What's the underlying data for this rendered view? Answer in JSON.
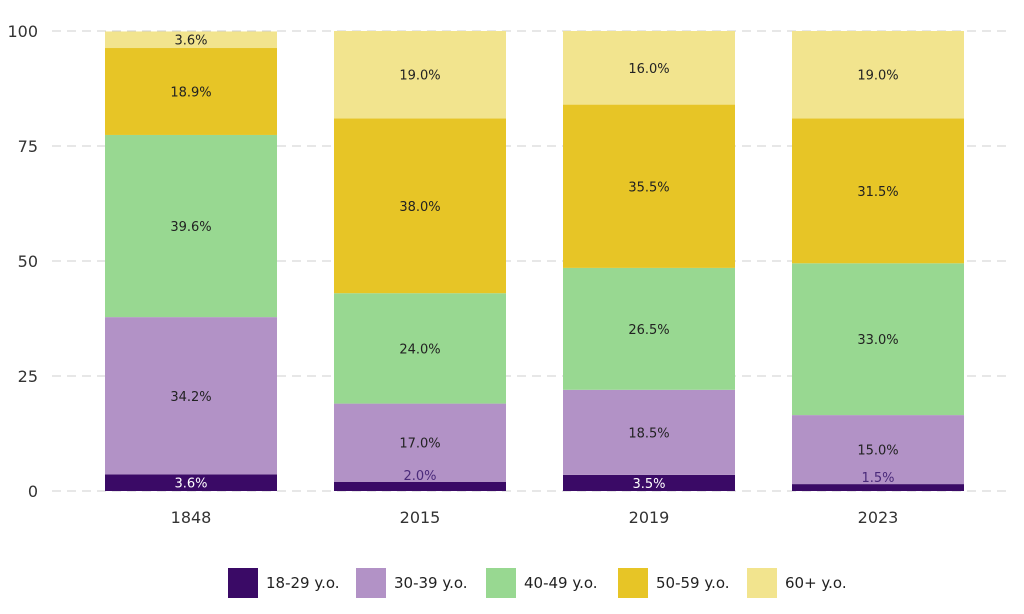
{
  "chart_data": {
    "type": "bar",
    "stacked": true,
    "categories": [
      "1848",
      "2015",
      "2019",
      "2023"
    ],
    "series": [
      {
        "name": "18-29 y.o.",
        "color": "#3a0a66",
        "values": [
          3.6,
          2.0,
          3.5,
          1.5
        ],
        "labels": [
          "3.6%",
          "2.0%",
          "3.5%",
          "1.5%"
        ],
        "label_color": "#ffffff"
      },
      {
        "name": "30-39 y.o.",
        "color": "#b292c6",
        "values": [
          34.2,
          17.0,
          18.5,
          15.0
        ],
        "labels": [
          "34.2%",
          "17.0%",
          "18.5%",
          "15.0%"
        ],
        "label_color": "#222222"
      },
      {
        "name": "40-49 y.o.",
        "color": "#98d891",
        "values": [
          39.6,
          24.0,
          26.5,
          33.0
        ],
        "labels": [
          "39.6%",
          "24.0%",
          "26.5%",
          "33.0%"
        ],
        "label_color": "#222222"
      },
      {
        "name": "50-59 y.o.",
        "color": "#e7c526",
        "values": [
          18.9,
          38.0,
          35.5,
          31.5
        ],
        "labels": [
          "18.9%",
          "38.0%",
          "35.5%",
          "31.5%"
        ],
        "label_color": "#222222"
      },
      {
        "name": "60+ y.o.",
        "color": "#f2e48e",
        "values": [
          3.6,
          19.0,
          16.0,
          19.0
        ],
        "labels": [
          "3.6%",
          "19.0%",
          "16.0%",
          "19.0%"
        ],
        "label_color": "#222222"
      }
    ],
    "ylim": [
      0,
      100
    ],
    "yticks": [
      "0",
      "25",
      "50",
      "75",
      "100"
    ],
    "grid": true,
    "legend_position": "bottom-center",
    "title": "",
    "xlabel": "",
    "ylabel": ""
  }
}
